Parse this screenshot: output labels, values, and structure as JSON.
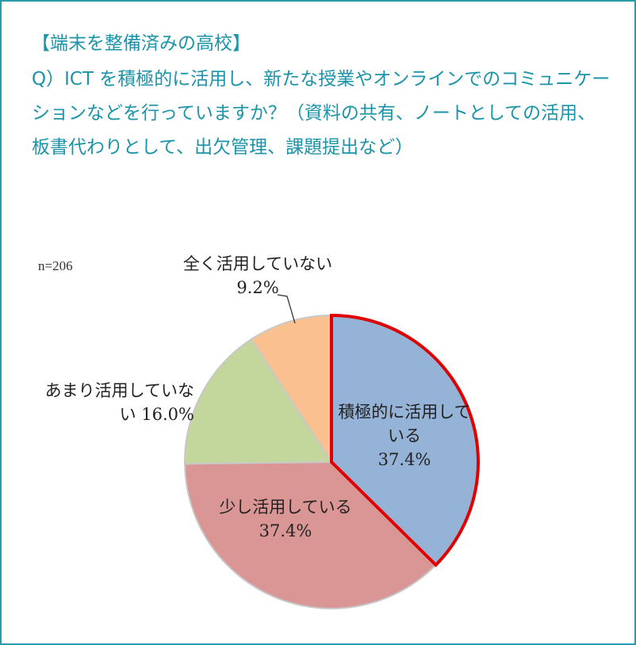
{
  "header": {
    "title": "【端末を整備済みの高校】",
    "question": "Q）ICT を積極的に活用し、新たな授業やオンラインでのコミュニケーションなどを行っていますか？（資料の共有、ノートとしての活用、板書代わりとして、出欠管理、課題提出など）"
  },
  "chart_data": {
    "type": "pie",
    "annotation": "n=206",
    "categories": [
      "積極的に活用している",
      "少し活用している",
      "あまり活用していない",
      "全く活用していない"
    ],
    "values": [
      37.4,
      37.4,
      16.0,
      9.2
    ],
    "value_labels": [
      "37.4%",
      "37.4%",
      "16.0%",
      "9.2%"
    ],
    "colors": [
      "#95b3d7",
      "#d99694",
      "#c3d69b",
      "#fac090"
    ],
    "highlight_index": 0,
    "highlight_color": "#e00000"
  }
}
